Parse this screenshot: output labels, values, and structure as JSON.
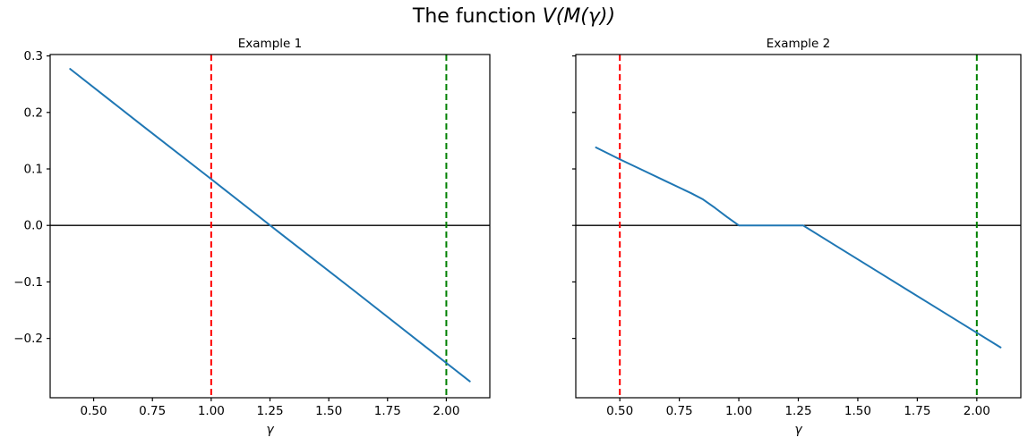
{
  "figure": {
    "suptitle_prefix": "The function ",
    "suptitle_math": "V(M(γ))",
    "background_color": "#ffffff",
    "text_color": "#000000"
  },
  "chart_data": [
    {
      "type": "line",
      "title": "Example 1",
      "xlabel": "γ",
      "ylabel": "",
      "xlim": [
        0.315,
        2.185
      ],
      "ylim": [
        -0.305,
        0.3025
      ],
      "grid": false,
      "legend": null,
      "xticks": {
        "values": [
          0.5,
          0.75,
          1.0,
          1.25,
          1.5,
          1.75,
          2.0
        ],
        "labels": [
          "0.50",
          "0.75",
          "1.00",
          "1.25",
          "1.50",
          "1.75",
          "2.00"
        ]
      },
      "yticks": {
        "values": [
          0.3,
          0.2,
          0.1,
          0.0,
          -0.1,
          -0.2
        ],
        "labels": [
          "0.3",
          "0.2",
          "0.1",
          "0.0",
          "−0.1",
          "−0.2"
        ],
        "show_labels": true
      },
      "series": [
        {
          "name": "V(M(gamma)) example 1",
          "color": "#1f77b4",
          "x": [
            0.4,
            0.7,
            1.0,
            1.3,
            1.6,
            1.9,
            2.1
          ],
          "y": [
            0.277,
            0.179,
            0.082,
            -0.016,
            -0.113,
            -0.211,
            -0.276
          ]
        }
      ],
      "vlines": [
        {
          "x": 1.0,
          "color": "#ff0000",
          "style": "dashed",
          "name": "red-dashed-vline"
        },
        {
          "x": 2.0,
          "color": "#008000",
          "style": "dashed",
          "name": "green-dashed-vline"
        }
      ],
      "hlines": [
        {
          "y": 0.0,
          "color": "#000000",
          "style": "solid",
          "name": "zero-hline"
        }
      ]
    },
    {
      "type": "line",
      "title": "Example 2",
      "xlabel": "γ",
      "ylabel": "",
      "xlim": [
        0.315,
        2.185
      ],
      "ylim": [
        -0.305,
        0.3025
      ],
      "grid": false,
      "legend": null,
      "xticks": {
        "values": [
          0.5,
          0.75,
          1.0,
          1.25,
          1.5,
          1.75,
          2.0
        ],
        "labels": [
          "0.50",
          "0.75",
          "1.00",
          "1.25",
          "1.50",
          "1.75",
          "2.00"
        ]
      },
      "yticks": {
        "values": [
          0.3,
          0.2,
          0.1,
          0.0,
          -0.1,
          -0.2
        ],
        "labels": [
          "0.3",
          "0.2",
          "0.1",
          "0.0",
          "−0.1",
          "−0.2"
        ],
        "show_labels": false
      },
      "series": [
        {
          "name": "V(M(gamma)) example 2",
          "color": "#1f77b4",
          "x": [
            0.4,
            0.5,
            0.6,
            0.7,
            0.8,
            0.85,
            0.9,
            0.95,
            1.0,
            1.1,
            1.27,
            1.4,
            1.6,
            1.8,
            2.0,
            2.1
          ],
          "y": [
            0.138,
            0.117,
            0.097,
            0.077,
            0.057,
            0.046,
            0.031,
            0.015,
            0.0,
            0.0,
            0.0,
            -0.034,
            -0.086,
            -0.138,
            -0.19,
            -0.216
          ]
        }
      ],
      "vlines": [
        {
          "x": 0.5,
          "color": "#ff0000",
          "style": "dashed",
          "name": "red-dashed-vline"
        },
        {
          "x": 2.0,
          "color": "#008000",
          "style": "dashed",
          "name": "green-dashed-vline"
        }
      ],
      "hlines": [
        {
          "y": 0.0,
          "color": "#000000",
          "style": "solid",
          "name": "zero-hline"
        }
      ]
    }
  ]
}
